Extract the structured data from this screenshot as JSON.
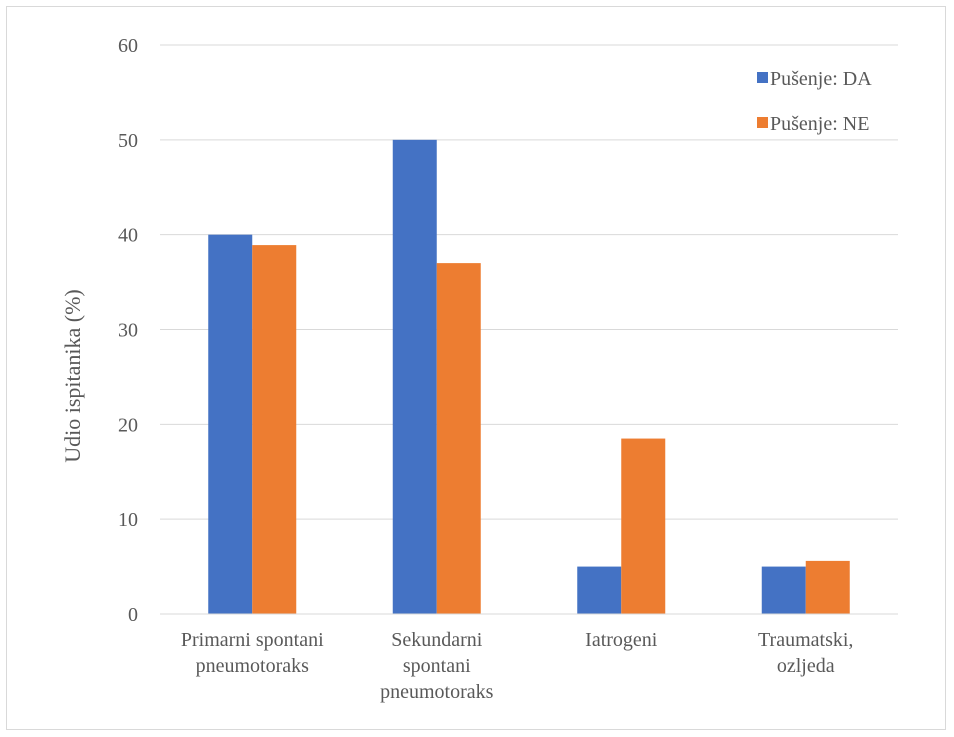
{
  "chart_data": {
    "type": "bar",
    "title": "",
    "xlabel": "",
    "ylabel": "Udio ispitanika   (%)",
    "ylim": [
      0,
      60
    ],
    "yticks": [
      0,
      10,
      20,
      30,
      40,
      50,
      60
    ],
    "grid": true,
    "legend_position": "top-right",
    "categories": [
      [
        "Primarni spontani",
        "pneumotoraks"
      ],
      [
        "Sekundarni",
        "spontani",
        "pneumotoraks"
      ],
      [
        "Iatrogeni"
      ],
      [
        "Traumatski,",
        "ozljeda"
      ]
    ],
    "series": [
      {
        "name": "Pušenje: DA",
        "color": "#4472C4",
        "values": [
          40,
          50,
          5,
          5
        ]
      },
      {
        "name": "Pušenje: NE",
        "color": "#ED7D31",
        "values": [
          38.9,
          37,
          18.5,
          5.6
        ]
      }
    ]
  }
}
